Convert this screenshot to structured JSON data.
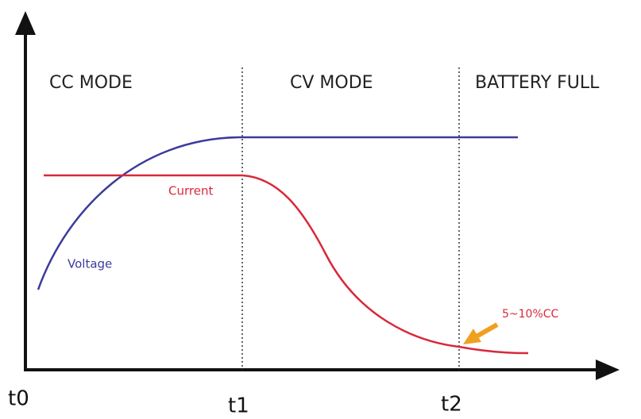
{
  "diagram": {
    "modes": [
      "CC MODE",
      "CV MODE",
      "BATTERY FULL"
    ],
    "times": [
      "t0",
      "t1",
      "t2"
    ],
    "curves": {
      "voltage": "Voltage",
      "current": "Current"
    },
    "annotation": "5~10%CC"
  }
}
